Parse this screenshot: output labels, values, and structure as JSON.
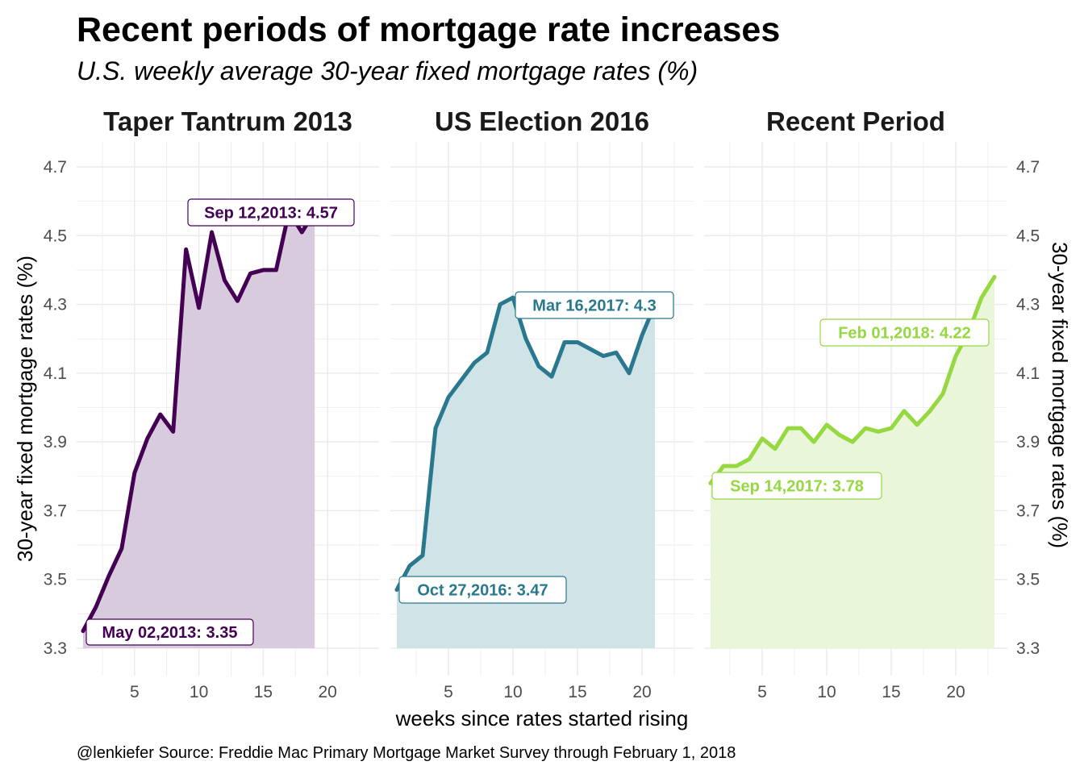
{
  "chart_data": {
    "type": "area",
    "title": "Recent periods of mortgage rate increases",
    "subtitle": "U.S. weekly average 30-year fixed mortgage rates (%)",
    "xlabel": "weeks since rates started rising",
    "ylabel": "30-year fixed mortgage rates (%)",
    "ylabel_right": "30-year fixed mortgage rates (%)",
    "caption": "@lenkiefer Source: Freddie Mac Primary Mortgage Market Survey through February 1, 2018",
    "ylim": [
      3.3,
      4.7
    ],
    "yticks": [
      "3.3",
      "3.5",
      "3.7",
      "3.9",
      "4.1",
      "4.3",
      "4.5",
      "4.7"
    ],
    "xticks": [
      "5",
      "10",
      "15",
      "20"
    ],
    "grid": true,
    "panels": [
      {
        "name": "Taper Tantrum 2013",
        "color": "#440154",
        "fill": "#d9cbde",
        "x": [
          1,
          2,
          3,
          4,
          5,
          6,
          7,
          8,
          9,
          10,
          11,
          12,
          13,
          14,
          15,
          16,
          17,
          18,
          19
        ],
        "values": [
          3.35,
          3.42,
          3.51,
          3.59,
          3.81,
          3.91,
          3.98,
          3.93,
          4.46,
          4.29,
          4.51,
          4.37,
          4.31,
          4.39,
          4.4,
          4.4,
          4.57,
          4.51,
          4.57
        ],
        "annotations": [
          {
            "label": "May 02,2013: 3.35"
          },
          {
            "label": "Sep 12,2013: 4.57"
          }
        ]
      },
      {
        "name": "US Election 2016",
        "color": "#2a788e",
        "fill": "#d0e3e7",
        "x": [
          1,
          2,
          3,
          4,
          5,
          6,
          7,
          8,
          9,
          10,
          11,
          12,
          13,
          14,
          15,
          16,
          17,
          18,
          19,
          20,
          21
        ],
        "values": [
          3.47,
          3.54,
          3.57,
          3.94,
          4.03,
          4.08,
          4.13,
          4.16,
          4.3,
          4.32,
          4.2,
          4.12,
          4.09,
          4.19,
          4.19,
          4.17,
          4.15,
          4.16,
          4.1,
          4.21,
          4.3
        ],
        "annotations": [
          {
            "label": "Oct 27,2016: 3.47"
          },
          {
            "label": "Mar 16,2017: 4.3"
          }
        ]
      },
      {
        "name": "Recent Period",
        "color": "#95d840",
        "fill": "#eaf6d9",
        "x": [
          1,
          2,
          3,
          4,
          5,
          6,
          7,
          8,
          9,
          10,
          11,
          12,
          13,
          14,
          15,
          16,
          17,
          18,
          19,
          20,
          21,
          22,
          23
        ],
        "values": [
          3.78,
          3.83,
          3.83,
          3.85,
          3.91,
          3.88,
          3.94,
          3.94,
          3.9,
          3.95,
          3.92,
          3.9,
          3.94,
          3.93,
          3.94,
          3.99,
          3.95,
          3.99,
          4.04,
          4.15,
          4.22,
          4.32,
          4.38
        ],
        "annotations": [
          {
            "label": "Sep 14,2017: 3.78"
          },
          {
            "label": "Feb 01,2018: 4.22"
          }
        ]
      }
    ]
  }
}
